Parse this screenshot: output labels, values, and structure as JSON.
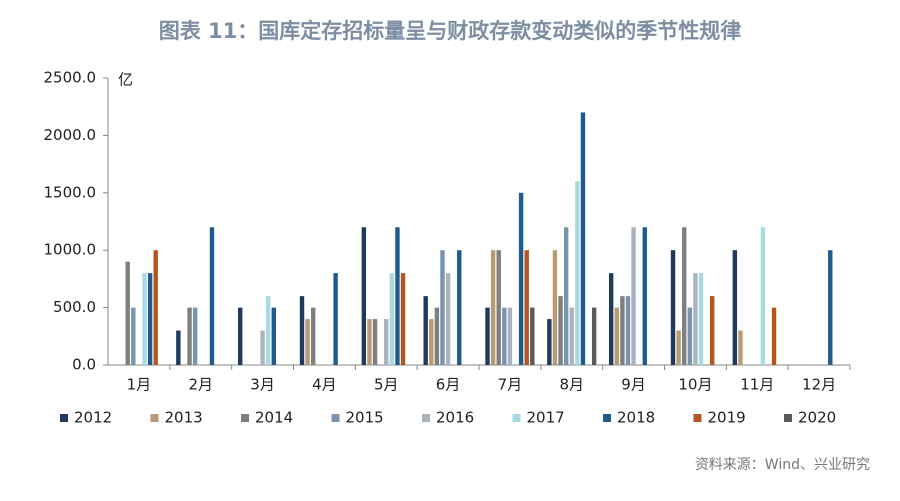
{
  "chart_data": {
    "type": "bar",
    "title": "图表 11：国库定存招标量呈与财政存款变动类似的季节性规律",
    "y_unit": "亿",
    "source": "资料来源：Wind、兴业研究",
    "categories": [
      "1月",
      "2月",
      "3月",
      "4月",
      "5月",
      "6月",
      "7月",
      "8月",
      "9月",
      "10月",
      "11月",
      "12月"
    ],
    "ylim": [
      0,
      2500
    ],
    "yticks": [
      {
        "value": 0,
        "label": "0.0"
      },
      {
        "value": 500,
        "label": "500.0"
      },
      {
        "value": 1000,
        "label": "1000.0"
      },
      {
        "value": 1500,
        "label": "1500.0"
      },
      {
        "value": 2000,
        "label": "2000.0"
      },
      {
        "value": 2500,
        "label": "2500.0"
      }
    ],
    "series": [
      {
        "name": "2012",
        "color": "#1f3a5c",
        "values": [
          null,
          300,
          500,
          600,
          1200,
          600,
          500,
          400,
          800,
          1000,
          1000,
          null
        ]
      },
      {
        "name": "2013",
        "color": "#b89b74",
        "values": [
          null,
          null,
          null,
          400,
          400,
          400,
          1000,
          1000,
          500,
          300,
          300,
          null
        ]
      },
      {
        "name": "2014",
        "color": "#7f7f7f",
        "values": [
          900,
          500,
          null,
          500,
          400,
          500,
          1000,
          600,
          600,
          1200,
          null,
          null
        ]
      },
      {
        "name": "2015",
        "color": "#7b94ae",
        "values": [
          500,
          500,
          null,
          null,
          null,
          1000,
          500,
          1200,
          600,
          500,
          null,
          null
        ]
      },
      {
        "name": "2016",
        "color": "#a9b4bf",
        "values": [
          null,
          null,
          300,
          null,
          400,
          800,
          500,
          500,
          1200,
          800,
          null,
          null
        ]
      },
      {
        "name": "2017",
        "color": "#a9d9e2",
        "values": [
          800,
          null,
          600,
          null,
          800,
          null,
          null,
          1600,
          null,
          800,
          1200,
          null
        ]
      },
      {
        "name": "2018",
        "color": "#1f5b8e",
        "values": [
          800,
          1200,
          500,
          800,
          1200,
          1000,
          1500,
          2200,
          1200,
          null,
          null,
          1000
        ]
      },
      {
        "name": "2019",
        "color": "#b5561e",
        "values": [
          1000,
          null,
          null,
          null,
          800,
          null,
          1000,
          null,
          null,
          600,
          500,
          null
        ]
      },
      {
        "name": "2020",
        "color": "#5a5a5a",
        "values": [
          null,
          null,
          null,
          null,
          null,
          null,
          500,
          500,
          null,
          null,
          null,
          null
        ]
      }
    ]
  }
}
